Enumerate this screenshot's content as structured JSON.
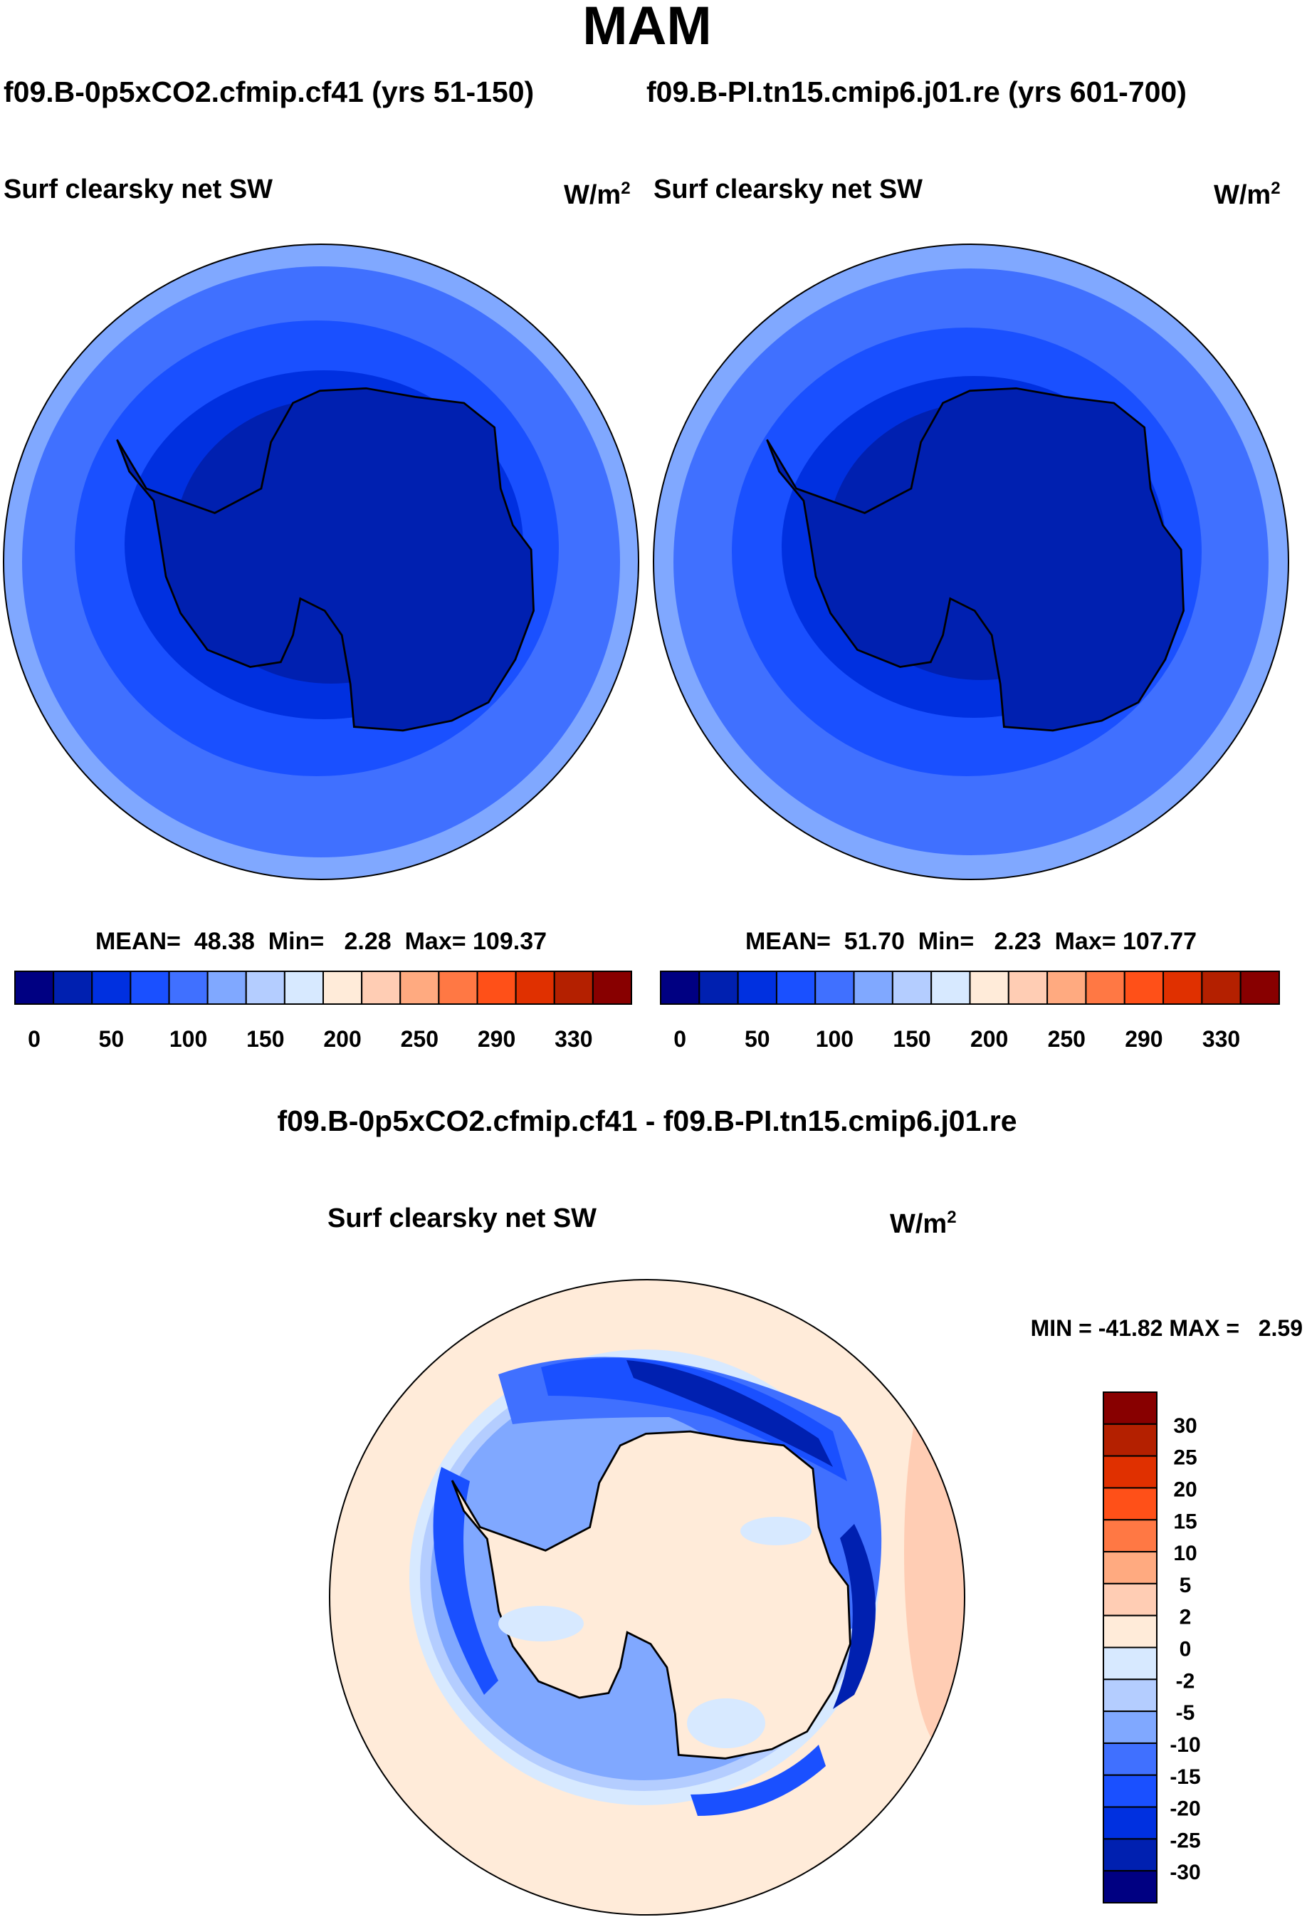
{
  "chart_data": {
    "type": "heatmap",
    "title": "MAM",
    "colors": [
      "#000082",
      "#0020b0",
      "#0030e0",
      "#1a50ff",
      "#4070ff",
      "#80a8ff",
      "#b4cdff",
      "#d7e9ff",
      "#ffebd9",
      "#ffcdb4",
      "#ffaa80",
      "#ff7844",
      "#ff5018",
      "#e03000",
      "#b42000",
      "#880000"
    ],
    "panels": [
      {
        "case_title": "f09.B-0p5xCO2.cfmip.cf41 (yrs 51-150)",
        "variable": "Surf clearsky net SW",
        "units": "W/m",
        "units_sup": "2",
        "stats": "MEAN=  48.38  Min=   2.28  Max= 109.37",
        "mean": 48.38,
        "min": 2.28,
        "max": 109.37,
        "colorbar_labels": [
          "0",
          "50",
          "100",
          "150",
          "200",
          "250",
          "290",
          "330"
        ]
      },
      {
        "case_title": "f09.B-PI.tn15.cmip6.j01.re (yrs 601-700)",
        "variable": "Surf clearsky net SW",
        "units": "W/m",
        "units_sup": "2",
        "stats": "MEAN=  51.70  Min=   2.23  Max= 107.77",
        "mean": 51.7,
        "min": 2.23,
        "max": 107.77,
        "colorbar_labels": [
          "0",
          "50",
          "100",
          "150",
          "200",
          "250",
          "290",
          "330"
        ]
      }
    ],
    "difference": {
      "title": "f09.B-0p5xCO2.cfmip.cf41 - f09.B-PI.tn15.cmip6.j01.re",
      "variable": "Surf clearsky net SW",
      "units": "W/m",
      "units_sup": "2",
      "stats": "MIN = -41.82 MAX =   2.59",
      "min": -41.82,
      "max": 2.59,
      "colorbar_labels": [
        "30",
        "25",
        "20",
        "15",
        "10",
        "5",
        "2",
        "0",
        "-2",
        "-5",
        "-10",
        "-15",
        "-20",
        "-25",
        "-30"
      ]
    }
  }
}
